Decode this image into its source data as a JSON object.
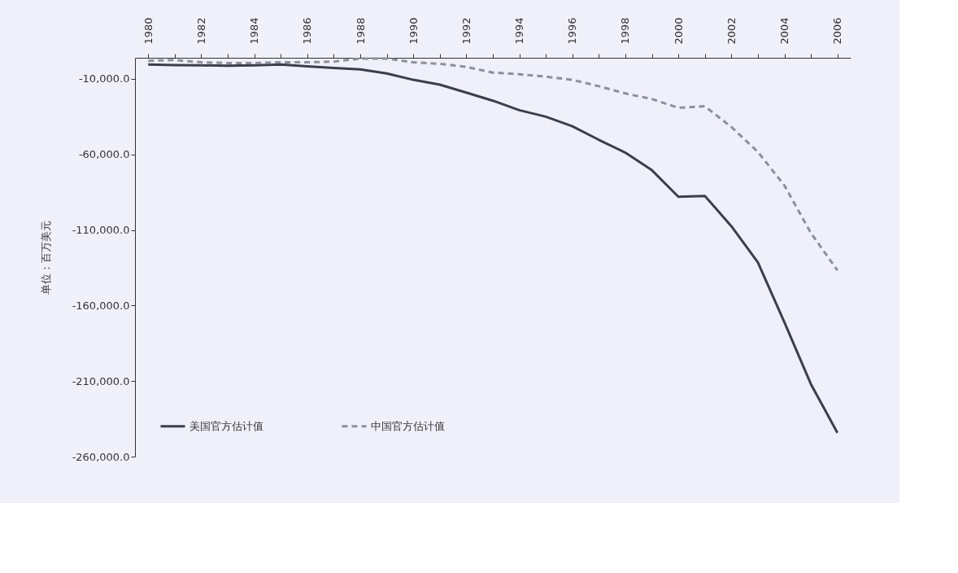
{
  "chart_data": {
    "type": "line",
    "ylabel": "单位：百万美元",
    "categories": [
      "1980",
      null,
      "1982",
      null,
      "1984",
      null,
      "1986",
      null,
      "1988",
      null,
      "1990",
      null,
      "1992",
      null,
      "1994",
      null,
      "1996",
      null,
      "1998",
      null,
      "2000",
      null,
      "2002",
      null,
      "2004",
      null,
      "2006"
    ],
    "series": [
      {
        "name": "美国官方估计值",
        "color": "#3a3f4c",
        "line_style": "solid",
        "values": [
          -500,
          -800,
          -1000,
          -1200,
          -1000,
          -500,
          -1600,
          -2700,
          -3700,
          -6400,
          -10600,
          -13800,
          -19000,
          -24400,
          -30700,
          -35000,
          -41300,
          -50300,
          -58800,
          -70400,
          -88000,
          -87400,
          -107500,
          -131400,
          -171000,
          -212000,
          -244200
        ]
      },
      {
        "name": "中国官方估计值",
        "color": "#8c909c",
        "line_style": "dashed",
        "values": [
          2000,
          2500,
          1000,
          500,
          500,
          1000,
          1000,
          1500,
          3500,
          3500,
          1000,
          0,
          -2000,
          -5800,
          -6900,
          -8500,
          -10600,
          -14800,
          -19600,
          -23300,
          -29100,
          -28100,
          -41800,
          -58300,
          -80500,
          -112000,
          -136700
        ]
      }
    ],
    "ylim": [
      -260000,
      4000
    ],
    "yticks": [
      {
        "value": -10000,
        "label": "-10,000.0"
      },
      {
        "value": -60000,
        "label": "-60,000.0"
      },
      {
        "value": -110000,
        "label": "-110,000.0"
      },
      {
        "value": -160000,
        "label": "-160,000.0"
      },
      {
        "value": -210000,
        "label": "-210,000.0"
      },
      {
        "value": -260000,
        "label": "-260,000.0"
      }
    ],
    "grid": false,
    "legend": "bottom",
    "marker": "none"
  }
}
